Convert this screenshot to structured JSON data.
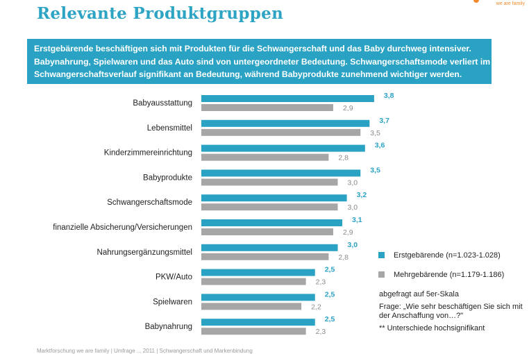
{
  "title": "Relevante Produktgruppen",
  "logo": {
    "tagline": "we are family"
  },
  "banner": {
    "line1": "Erstgebärende beschäftigen sich mit Produkten für die Schwangerschaft und das Baby durchweg intensiver.",
    "line2": "Babynahrung, Spielwaren und das Auto sind von untergeordneter Bedeutung. Schwangerschaftsmode verliert im",
    "line3": "Schwangerschaftsverlauf signifikant an Bedeutung, während Babyprodukte zunehmend wichtiger werden."
  },
  "colors": {
    "primary": "#2aa2c4",
    "secondary": "#a6a6a6",
    "title": "#2ea4c4"
  },
  "chart_data": {
    "type": "bar",
    "orientation": "horizontal",
    "categories": [
      "Babyausstattung",
      "Lebensmittel",
      "Kinderzimmereinrichtung",
      "Babyprodukte",
      "Schwangerschaftsmode",
      "finanzielle Absicherung/Versicherungen",
      "Nahrungsergänzungsmittel",
      "PKW/Auto",
      "Spielwaren",
      "Babynahrung"
    ],
    "series": [
      {
        "name": "Erstgebärende (n=1.023-1.028)",
        "values": [
          3.8,
          3.7,
          3.6,
          3.5,
          3.2,
          3.1,
          3.0,
          2.5,
          2.5,
          2.5
        ],
        "labels": [
          "3,8",
          "3,7",
          "3,6",
          "3,5",
          "3,2",
          "3,1",
          "3,0",
          "2,5",
          "2,5",
          "2,5"
        ],
        "color": "#2aa2c4"
      },
      {
        "name": "Mehrgebärende (n=1.179-1.186)",
        "values": [
          2.9,
          3.5,
          2.8,
          3.0,
          3.0,
          2.9,
          2.8,
          2.3,
          2.2,
          2.3
        ],
        "labels": [
          "2,9",
          "3,5",
          "2,8",
          "3,0",
          "3,0",
          "2,9",
          "2,8",
          "2,3",
          "2,2",
          "2,3"
        ],
        "color": "#a6a6a6"
      }
    ],
    "legend": "right"
  },
  "notes": {
    "scale": "abgefragt auf 5er-Skala",
    "question": "Frage: „Wie sehr beschäftigen Sie sich mit der Anschaffung von…?\"",
    "significance": "** Unterschiede hochsignifikant"
  },
  "footer": "Marktforschung we are family | Umfrage ... 2011 | Schwangerschaft und Markenbindung"
}
